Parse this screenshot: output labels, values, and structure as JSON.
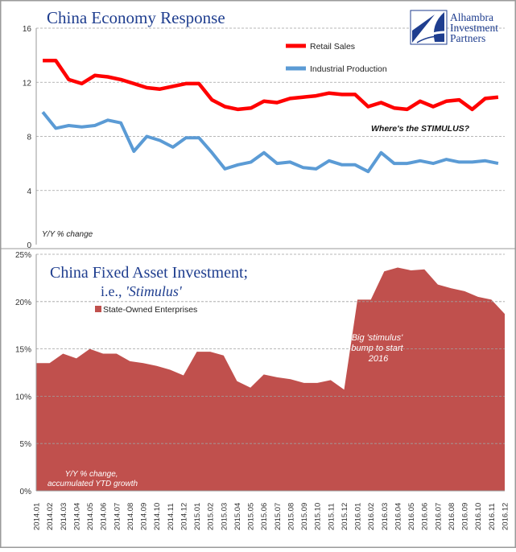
{
  "branding": {
    "lines": [
      "Alhambra",
      "Investment",
      "Partners"
    ]
  },
  "chart_data": [
    {
      "type": "line",
      "title": "China Economy Response",
      "ylabel": "Y/Y % change",
      "ylim": [
        0,
        16
      ],
      "yticks": [
        0,
        4,
        8,
        12,
        16
      ],
      "grid": "horizontal dashed",
      "legend": "top-right",
      "annotation": "Where's the STIMULUS?",
      "x": [
        "2014.01",
        "2014.02",
        "2014.03",
        "2014.04",
        "2014.05",
        "2014.06",
        "2014.07",
        "2014.08",
        "2014.09",
        "2014.10",
        "2014.11",
        "2014.12",
        "2015.01",
        "2015.02",
        "2015.03",
        "2015.04",
        "2015.05",
        "2015.06",
        "2015.07",
        "2015.08",
        "2015.09",
        "2015.10",
        "2015.11",
        "2015.12",
        "2016.01",
        "2016.02",
        "2016.03",
        "2016.04",
        "2016.05",
        "2016.06",
        "2016.07",
        "2016.08",
        "2016.09",
        "2016.10",
        "2016.11",
        "2016.12"
      ],
      "series": [
        {
          "name": "Retail Sales",
          "color": "#ff0000",
          "values": [
            13.6,
            13.6,
            12.2,
            11.9,
            12.5,
            12.4,
            12.2,
            11.9,
            11.6,
            11.5,
            11.7,
            11.9,
            11.9,
            10.7,
            10.2,
            10.0,
            10.1,
            10.6,
            10.5,
            10.8,
            10.9,
            11.0,
            11.2,
            11.1,
            11.1,
            10.2,
            10.5,
            10.1,
            10.0,
            10.6,
            10.2,
            10.6,
            10.7,
            10.0,
            10.8,
            10.9
          ]
        },
        {
          "name": "Industrial Production",
          "color": "#5b9bd5",
          "values": [
            9.8,
            8.6,
            8.8,
            8.7,
            8.8,
            9.2,
            9.0,
            6.9,
            8.0,
            7.7,
            7.2,
            7.9,
            7.9,
            6.8,
            5.6,
            5.9,
            6.1,
            6.8,
            6.0,
            6.1,
            5.7,
            5.6,
            6.2,
            5.9,
            5.9,
            5.4,
            6.8,
            6.0,
            6.0,
            6.2,
            6.0,
            6.3,
            6.1,
            6.1,
            6.2,
            6.0
          ]
        }
      ]
    },
    {
      "type": "area",
      "title": "China Fixed Asset Investment;",
      "subtitle_prefix": "i.e., ",
      "subtitle_emph": "'Stimulus'",
      "ylabel": "Y/Y % change, accumulated YTD growth",
      "ylim": [
        0,
        25
      ],
      "ytick_labels": [
        "0%",
        "5%",
        "10%",
        "15%",
        "20%",
        "25%"
      ],
      "yticks": [
        0,
        5,
        10,
        15,
        20,
        25
      ],
      "grid": "horizontal dashed",
      "legend": "top-left",
      "annotation": [
        "Big 'stimulus'",
        "bump to start",
        "2016"
      ],
      "x": [
        "2014.01",
        "2014.02",
        "2014.03",
        "2014.04",
        "2014.05",
        "2014.06",
        "2014.07",
        "2014.08",
        "2014.09",
        "2014.10",
        "2014.11",
        "2014.12",
        "2015.01",
        "2015.02",
        "2015.03",
        "2015.04",
        "2015.05",
        "2015.06",
        "2015.07",
        "2015.08",
        "2015.09",
        "2015.10",
        "2015.11",
        "2015.12",
        "2016.01",
        "2016.02",
        "2016.03",
        "2016.04",
        "2016.05",
        "2016.06",
        "2016.07",
        "2016.08",
        "2016.09",
        "2016.10",
        "2016.11",
        "2016.12"
      ],
      "series": [
        {
          "name": "State-Owned Enterprises",
          "color": "#c0504d",
          "values": [
            13.5,
            13.5,
            14.5,
            14.0,
            15.0,
            14.5,
            14.5,
            13.7,
            13.5,
            13.2,
            12.8,
            12.2,
            14.7,
            14.7,
            14.3,
            11.6,
            10.9,
            12.3,
            12.0,
            11.8,
            11.4,
            11.4,
            11.7,
            10.7,
            20.2,
            20.2,
            23.2,
            23.6,
            23.3,
            23.4,
            21.8,
            21.4,
            21.1,
            20.5,
            20.2,
            18.7
          ]
        }
      ]
    }
  ]
}
